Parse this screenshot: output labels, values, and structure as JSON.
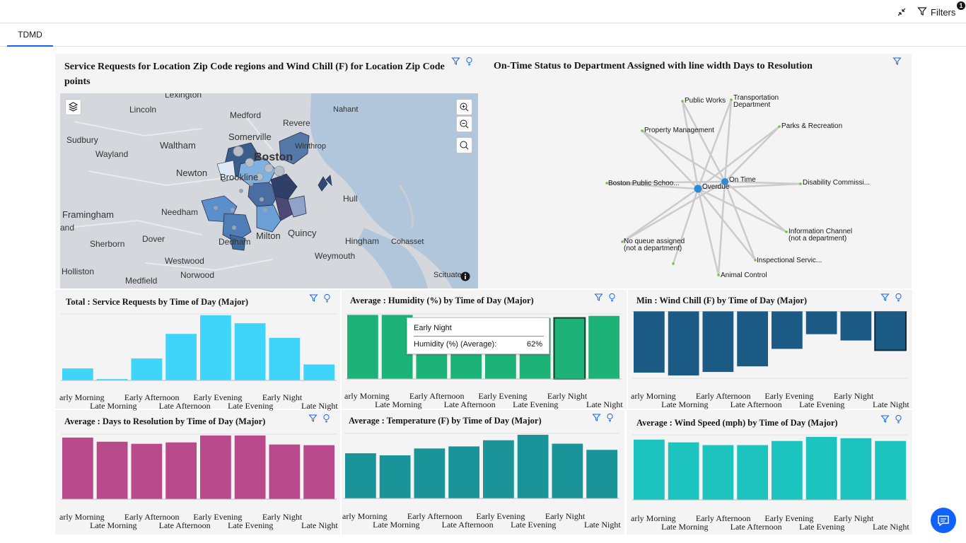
{
  "toolbar": {
    "filters_label": "Filters",
    "filters_count": "1",
    "collapse_icon": "collapse-icon",
    "filter_icon": "filter-icon"
  },
  "tabs": [
    {
      "label": "TDMD",
      "active": true
    }
  ],
  "colors": {
    "accent": "#0f62fe",
    "service_requests": "#3fd5fb",
    "humidity": "#1db277",
    "wind_chill": "#1b5a85",
    "days_to_resolution": "#b8498b",
    "temperature": "#1a9399",
    "wind_speed": "#1dc4bf"
  },
  "map_panel": {
    "title": "Service Requests for Location Zip Code regions and Wind Chill (F) for Location Zip Code points",
    "place_labels": [
      "Lexington",
      "Lincoln",
      "Medford",
      "Nahant",
      "Sudbury",
      "Somerville",
      "Revere",
      "Waltham",
      "Boston",
      "Winthrop",
      "Wayland",
      "Newton",
      "Brookline",
      "Hull",
      "Framingham",
      "Needham",
      "and",
      "Milton",
      "Quincy",
      "Sherborn",
      "Dover",
      "Dedham",
      "Hingham",
      "Cohasset",
      "Weymouth",
      "Westwood",
      "Holliston",
      "Norwood",
      "Medfield",
      "Scituate"
    ],
    "controls": [
      "layers-icon",
      "zoom-in-icon",
      "zoom-out-icon",
      "search-icon",
      "info-icon"
    ]
  },
  "network_panel": {
    "title": "On-Time Status to Department Assigned with line width Days to Resolution",
    "hubs": [
      "Overdue",
      "On Time"
    ],
    "nodes": [
      "Public Works",
      "Transportation Department",
      "Parks & Recreation",
      "Property Management",
      "Boston Public Schoo...",
      "Disability Commissi...",
      "No queue assigned (not a department)",
      "Information Channel (not a department)",
      "Inspectional Servic...",
      "Animal Control"
    ]
  },
  "x_axis_row1": [
    "arly Morning",
    "Early Afternoon",
    "Early Evening",
    "Early Night"
  ],
  "x_axis_row2": [
    "Late Morning",
    "Late Afternoon",
    "Late Evening",
    "Late Night"
  ],
  "tooltip": {
    "title": "Early Night",
    "label": "Humidity (%) (Average):",
    "value": "62%"
  },
  "chart_data": [
    {
      "type": "bar",
      "title": "Total : Service Requests by Time of Day (Major)",
      "categories": [
        "Early Morning",
        "Late Morning",
        "Early Afternoon",
        "Late Afternoon",
        "Early Evening",
        "Late Evening",
        "Early Night",
        "Late Night"
      ],
      "values": [
        18,
        2,
        33,
        70,
        98,
        86,
        64,
        24
      ]
    },
    {
      "type": "bar",
      "title": "Average : Humidity (%) by Time of Day (Major)",
      "categories": [
        "Early Morning",
        "Late Morning",
        "Early Afternoon",
        "Late Afternoon",
        "Early Evening",
        "Late Evening",
        "Early Night",
        "Late Night"
      ],
      "values": [
        65,
        65,
        62,
        62,
        62,
        62,
        62,
        64
      ]
    },
    {
      "type": "bar",
      "title": "Min : Wind Chill (F) by Time of Day (Major)",
      "categories": [
        "Early Morning",
        "Late Morning",
        "Early Afternoon",
        "Late Afternoon",
        "Early Evening",
        "Late Evening",
        "Early Night",
        "Late Night"
      ],
      "values": [
        -88,
        -92,
        -87,
        -79,
        -54,
        -33,
        -42,
        -56
      ]
    },
    {
      "type": "bar",
      "title": "Average : Days to Resolution by Time of Day (Major)",
      "categories": [
        "Early Morning",
        "Late Morning",
        "Early Afternoon",
        "Late Afternoon",
        "Early Evening",
        "Late Evening",
        "Early Night",
        "Late Night"
      ],
      "values": [
        89,
        83,
        80,
        82,
        92,
        92,
        79,
        78
      ]
    },
    {
      "type": "bar",
      "title": "Average : Temperature (F) by Time of Day (Major)",
      "categories": [
        "Early Morning",
        "Late Morning",
        "Early Afternoon",
        "Late Afternoon",
        "Early Evening",
        "Late Evening",
        "Early Night",
        "Late Night"
      ],
      "values": [
        66,
        63,
        73,
        76,
        85,
        93,
        80,
        71
      ]
    },
    {
      "type": "bar",
      "title": "Average : Wind Speed (mph) by Time of Day (Major)",
      "categories": [
        "Early Morning",
        "Late Morning",
        "Early Afternoon",
        "Late Afternoon",
        "Early Evening",
        "Late Evening",
        "Early Night",
        "Late Night"
      ],
      "values": [
        88,
        84,
        80,
        80,
        86,
        92,
        90,
        86
      ]
    }
  ]
}
